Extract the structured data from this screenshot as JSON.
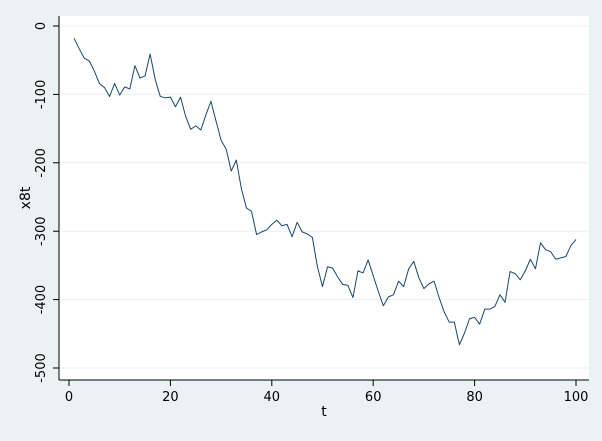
{
  "chart_data": {
    "type": "line",
    "title": "",
    "xlabel": "t",
    "ylabel": "x8t",
    "xlim": [
      0,
      100
    ],
    "ylim": [
      -500,
      0
    ],
    "xticks": [
      0,
      20,
      40,
      60,
      80,
      100
    ],
    "yticks": [
      0,
      -100,
      -200,
      -300,
      -400,
      -500
    ],
    "grid": true,
    "legend": "none",
    "series": [
      {
        "color": "#1a476f",
        "x": [
          1,
          2,
          3,
          4,
          5,
          6,
          7,
          8,
          9,
          10,
          11,
          12,
          13,
          14,
          15,
          16,
          17,
          18,
          19,
          20,
          21,
          22,
          23,
          24,
          25,
          26,
          27,
          28,
          29,
          30,
          31,
          32,
          33,
          34,
          35,
          36,
          37,
          38,
          39,
          40,
          41,
          42,
          43,
          44,
          45,
          46,
          47,
          48,
          49,
          50,
          51,
          52,
          53,
          54,
          55,
          56,
          57,
          58,
          59,
          60,
          61,
          62,
          63,
          64,
          65,
          66,
          67,
          68,
          69,
          70,
          71,
          72,
          73,
          74,
          75,
          76,
          77,
          78,
          79,
          80,
          81,
          82,
          83,
          84,
          85,
          86,
          87,
          88,
          89,
          90,
          91,
          92,
          93,
          94,
          95,
          96,
          97,
          98,
          99,
          100
        ],
        "values": [
          -18,
          -33,
          -47,
          -51,
          -66,
          -84,
          -90,
          -103,
          -84,
          -101,
          -89,
          -92,
          -58,
          -76,
          -73,
          -41,
          -78,
          -103,
          -105,
          -104,
          -118,
          -104,
          -132,
          -151,
          -146,
          -152,
          -130,
          -110,
          -139,
          -167,
          -180,
          -212,
          -196,
          -238,
          -266,
          -271,
          -305,
          -301,
          -298,
          -290,
          -284,
          -292,
          -290,
          -308,
          -287,
          -301,
          -304,
          -309,
          -352,
          -381,
          -352,
          -354,
          -367,
          -378,
          -379,
          -397,
          -358,
          -361,
          -342,
          -365,
          -388,
          -409,
          -396,
          -393,
          -373,
          -381,
          -355,
          -344,
          -368,
          -384,
          -377,
          -373,
          -397,
          -418,
          -433,
          -433,
          -466,
          -449,
          -428,
          -426,
          -436,
          -414,
          -414,
          -410,
          -393,
          -404,
          -359,
          -362,
          -371,
          -358,
          -341,
          -355,
          -317,
          -327,
          -330,
          -341,
          -339,
          -337,
          -321,
          -312
        ]
      }
    ]
  }
}
